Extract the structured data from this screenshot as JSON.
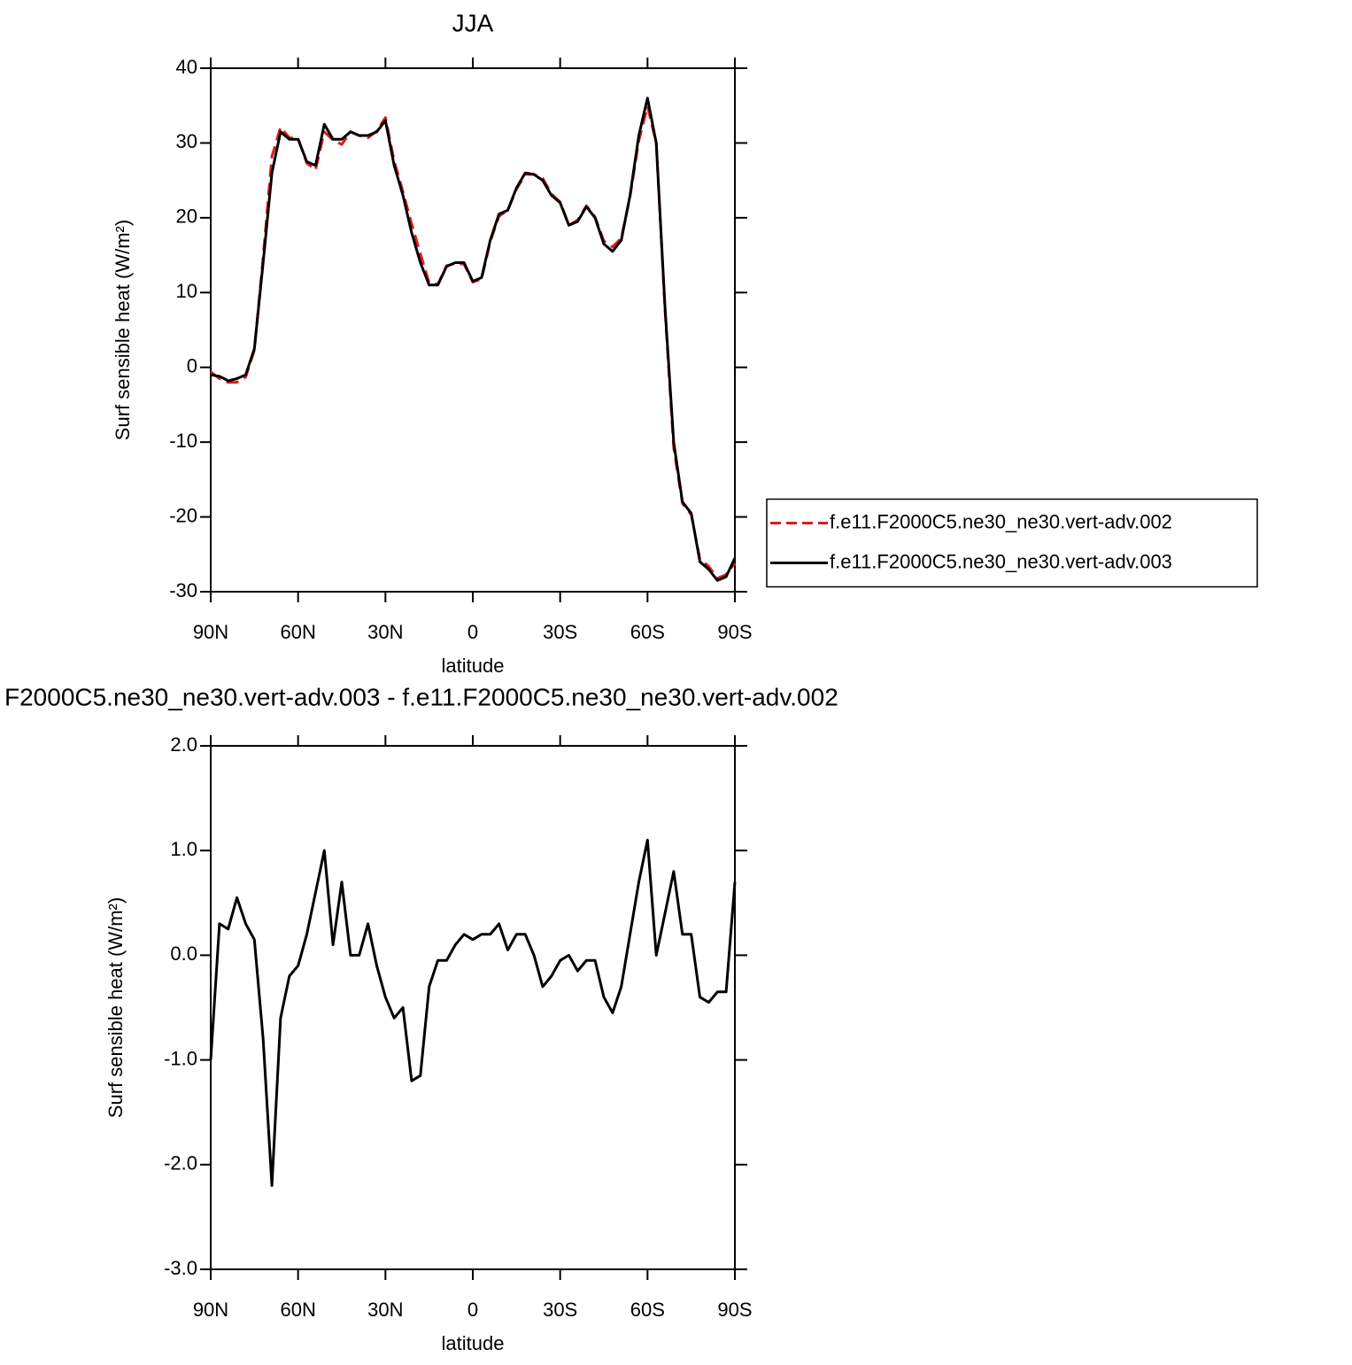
{
  "chart_data": [
    {
      "type": "line",
      "title": "JJA",
      "ylabel": "Surf sensible heat (W/m²)",
      "xlabel": "latitude",
      "x": [
        90,
        87,
        84,
        81,
        78,
        75,
        72,
        69,
        66,
        63,
        60,
        57,
        54,
        51,
        48,
        45,
        42,
        39,
        36,
        33,
        30,
        27,
        24,
        21,
        18,
        15,
        12,
        9,
        6,
        3,
        0,
        -3,
        -6,
        -9,
        -12,
        -15,
        -18,
        -21,
        -24,
        -27,
        -30,
        -33,
        -36,
        -39,
        -42,
        -45,
        -48,
        -51,
        -54,
        -57,
        -60,
        -63,
        -66,
        -69,
        -72,
        -75,
        -78,
        -81,
        -84,
        -87,
        -90
      ],
      "xlim": [
        90,
        -90
      ],
      "xticks": [
        {
          "value": 90,
          "label": "90N"
        },
        {
          "value": 60,
          "label": "60N"
        },
        {
          "value": 30,
          "label": "30N"
        },
        0,
        {
          "value": -30,
          "label": "30S"
        },
        {
          "value": -60,
          "label": "60S"
        },
        {
          "value": -90,
          "label": "90S"
        }
      ],
      "ylim": [
        -30,
        40
      ],
      "yticks": [
        40,
        30,
        20,
        10,
        0,
        -10,
        -20,
        -30
      ],
      "legend": "right",
      "series": [
        {
          "name": "f.e11.F2000C5.ne30_ne30.vert-adv.002",
          "color": "#e31a1c",
          "line_style": "dashed",
          "values": [
            -0.6,
            -1.5,
            -2.0,
            -2.0,
            -1.3,
            2.3,
            14.8,
            28.2,
            32.1,
            30.7,
            30.6,
            27.3,
            26.4,
            31.5,
            30.4,
            29.8,
            31.5,
            31.0,
            30.7,
            31.6,
            33.4,
            27.6,
            23.5,
            19.2,
            15.2,
            11.3,
            11.1,
            13.6,
            13.9,
            13.8,
            11.4,
            11.8,
            16.8,
            20.2,
            21.0,
            23.8,
            25.8,
            25.8,
            25.3,
            23.2,
            22.1,
            19.0,
            19.7,
            21.6,
            20.1,
            16.9,
            16.1,
            17.3,
            22.8,
            30.3,
            34.9,
            30.0,
            7.6,
            -10.8,
            -18.2,
            -19.7,
            -25.6,
            -26.6,
            -28.2,
            -27.7,
            -26.2
          ]
        },
        {
          "name": "f.e11.F2000C5.ne30_ne30.vert-adv.003",
          "color": "#000000",
          "line_style": "solid",
          "values": [
            -1.0,
            -1.2,
            -1.8,
            -1.5,
            -1.0,
            2.5,
            14.0,
            26.0,
            31.5,
            30.5,
            30.5,
            27.5,
            27.0,
            32.5,
            30.5,
            30.5,
            31.5,
            31.0,
            31.0,
            31.5,
            33.0,
            27.0,
            23.0,
            18.0,
            14.0,
            11.0,
            11.0,
            13.5,
            14.0,
            14.0,
            11.5,
            12.0,
            17.0,
            20.5,
            21.0,
            24.0,
            26.0,
            25.8,
            25.0,
            23.0,
            22.0,
            19.0,
            19.5,
            21.5,
            20.0,
            16.5,
            15.5,
            17.0,
            23.0,
            31.0,
            36.0,
            30.0,
            8.0,
            -10.0,
            -18.0,
            -19.5,
            -26.0,
            -27.0,
            -28.5,
            -28.0,
            -25.5
          ]
        }
      ]
    },
    {
      "type": "line",
      "title": "F2000C5.ne30_ne30.vert-adv.003 - f.e11.F2000C5.ne30_ne30.vert-adv.002",
      "ylabel": "Surf sensible heat (W/m²)",
      "xlabel": "latitude",
      "x": [
        90,
        87,
        84,
        81,
        78,
        75,
        72,
        69,
        66,
        63,
        60,
        57,
        54,
        51,
        48,
        45,
        42,
        39,
        36,
        33,
        30,
        27,
        24,
        21,
        18,
        15,
        12,
        9,
        6,
        3,
        0,
        -3,
        -6,
        -9,
        -12,
        -15,
        -18,
        -21,
        -24,
        -27,
        -30,
        -33,
        -36,
        -39,
        -42,
        -45,
        -48,
        -51,
        -54,
        -57,
        -60,
        -63,
        -66,
        -69,
        -72,
        -75,
        -78,
        -81,
        -84,
        -87,
        -90
      ],
      "xlim": [
        90,
        -90
      ],
      "xticks": [
        {
          "value": 90,
          "label": "90N"
        },
        {
          "value": 60,
          "label": "60N"
        },
        {
          "value": 30,
          "label": "30N"
        },
        0,
        {
          "value": -30,
          "label": "30S"
        },
        {
          "value": -60,
          "label": "60S"
        },
        {
          "value": -90,
          "label": "90S"
        }
      ],
      "ylim": [
        -3,
        2
      ],
      "yticks": [
        {
          "value": 2,
          "label": "2.0"
        },
        {
          "value": 1,
          "label": "1.0"
        },
        {
          "value": 0,
          "label": "0.0"
        },
        {
          "value": -1,
          "label": "-1.0"
        },
        {
          "value": -2,
          "label": "-2.0"
        },
        {
          "value": -3,
          "label": "-3.0"
        }
      ],
      "color": "#000000",
      "values": [
        -1.0,
        0.3,
        0.25,
        0.55,
        0.3,
        0.15,
        -0.8,
        -2.2,
        -0.6,
        -0.2,
        -0.1,
        0.2,
        0.6,
        1.0,
        0.1,
        0.7,
        0.0,
        0.0,
        0.3,
        -0.1,
        -0.4,
        -0.6,
        -0.5,
        -1.2,
        -1.15,
        -0.3,
        -0.05,
        -0.05,
        0.1,
        0.2,
        0.15,
        0.2,
        0.2,
        0.3,
        0.05,
        0.2,
        0.2,
        0.0,
        -0.3,
        -0.2,
        -0.05,
        0.0,
        -0.15,
        -0.05,
        -0.05,
        -0.4,
        -0.55,
        -0.3,
        0.2,
        0.7,
        1.1,
        0.0,
        0.4,
        0.8,
        0.2,
        0.2,
        -0.4,
        -0.45,
        -0.35,
        -0.35,
        0.7
      ]
    }
  ]
}
